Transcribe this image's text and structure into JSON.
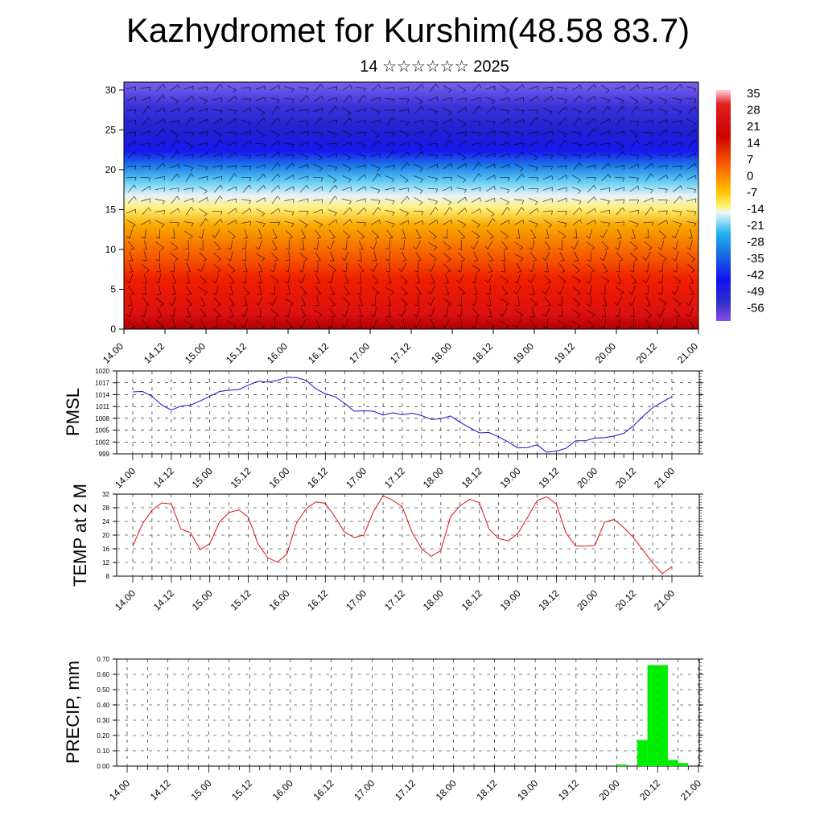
{
  "header": {
    "title": "Kazhydromet for Kurshim(48.58 83.7)",
    "subtitle": "14 ☆☆☆☆☆☆ 2025"
  },
  "colors": {
    "pmsl_line": "#1010d0",
    "temp_line": "#e01010",
    "precip_bar": "#00ee00"
  },
  "chart_data": [
    {
      "type": "heatmap",
      "name_hint": "upper-air-cross-section",
      "x_ticks": [
        "14.00",
        "14.12",
        "15.00",
        "15.12",
        "16.00",
        "16.12",
        "17.00",
        "17.12",
        "18.00",
        "18.12",
        "19.00",
        "19.12",
        "20.00",
        "20.12",
        "21.00"
      ],
      "y_ticks": [
        "0",
        "5",
        "10",
        "15",
        "20",
        "25",
        "30"
      ],
      "ylim": [
        0,
        31
      ],
      "colorbar_labels": [
        "35",
        "28",
        "21",
        "14",
        "7",
        "0",
        "-7",
        "-14",
        "-21",
        "-28",
        "-35",
        "-42",
        "-49",
        "-56"
      ]
    },
    {
      "type": "line",
      "ylabel": "PMSL",
      "x_ticks": [
        "14.00",
        "14.12",
        "15.00",
        "15.12",
        "16.00",
        "16.12",
        "17.00",
        "17.12",
        "18.00",
        "18.12",
        "19.00",
        "19.12",
        "20.00",
        "20.12",
        "21.00"
      ],
      "y_ticks": [
        "1020",
        "1017",
        "1014",
        "1011",
        "1008",
        "1005",
        "1002",
        "999"
      ],
      "ylim": [
        999,
        1020
      ],
      "values": [
        1014.7,
        1014.8,
        1013.6,
        1011.4,
        1010.1,
        1011.1,
        1011.4,
        1012.4,
        1013.6,
        1014.8,
        1015.1,
        1015.3,
        1016.4,
        1017.4,
        1017.2,
        1017.6,
        1018.4,
        1018.3,
        1017.6,
        1015.5,
        1014.2,
        1013.5,
        1011.8,
        1009.8,
        1009.9,
        1009.8,
        1008.8,
        1009.4,
        1008.9,
        1009.3,
        1008.7,
        1007.7,
        1007.9,
        1008.6,
        1007.0,
        1005.6,
        1004.3,
        1004.4,
        1003.3,
        1002.0,
        1000.5,
        1000.6,
        1001.3,
        999.4,
        999.7,
        1000.4,
        1002.3,
        1002.3,
        1003.0,
        1003.1,
        1003.5,
        1004.2,
        1006.1,
        1008.5,
        1010.7,
        1012.1,
        1013.5
      ]
    },
    {
      "type": "line",
      "ylabel": "TEMP at 2 M",
      "x_ticks": [
        "14.00",
        "14.12",
        "15.00",
        "15.12",
        "16.00",
        "16.12",
        "17.00",
        "17.12",
        "18.00",
        "18.12",
        "19.00",
        "19.12",
        "20.00",
        "20.12",
        "21.00"
      ],
      "y_ticks": [
        "32",
        "28",
        "24",
        "20",
        "16",
        "12",
        "8"
      ],
      "ylim": [
        8,
        32
      ],
      "values": [
        16.8,
        23.3,
        27.3,
        29.4,
        29.1,
        21.8,
        20.7,
        15.8,
        17.5,
        23.8,
        26.6,
        27.4,
        25.3,
        17.5,
        13.4,
        12.1,
        14.4,
        23.5,
        27.7,
        29.7,
        29.3,
        25.3,
        20.9,
        19.3,
        20.0,
        26.9,
        31.5,
        30.2,
        28.2,
        20.9,
        16.0,
        13.8,
        15.5,
        25.4,
        28.6,
        30.5,
        29.5,
        21.8,
        19.0,
        18.3,
        20.5,
        25.1,
        30.1,
        31.2,
        29.1,
        20.6,
        16.8,
        16.8,
        17.0,
        23.8,
        24.6,
        22.2,
        19.3,
        15.6,
        11.9,
        8.7,
        10.8
      ]
    },
    {
      "type": "bar",
      "ylabel": "PRECIP, mm",
      "x_ticks": [
        "14.00",
        "14.12",
        "15.00",
        "15.12",
        "16.00",
        "16.12",
        "17.00",
        "17.12",
        "18.00",
        "18.12",
        "19.00",
        "19.12",
        "20.00",
        "20.12",
        "21.00"
      ],
      "y_ticks": [
        "0.70",
        "0.60",
        "0.50",
        "0.40",
        "0.30",
        "0.20",
        "0.10",
        "0.00"
      ],
      "ylim": [
        0,
        0.7
      ],
      "values": [
        0,
        0,
        0,
        0,
        0,
        0,
        0,
        0,
        0,
        0,
        0,
        0,
        0,
        0,
        0,
        0,
        0,
        0,
        0,
        0,
        0,
        0,
        0,
        0,
        0,
        0,
        0,
        0,
        0,
        0,
        0,
        0,
        0,
        0,
        0,
        0,
        0,
        0,
        0,
        0,
        0,
        0,
        0,
        0,
        0,
        0,
        0,
        0,
        0.01,
        0,
        0.17,
        0.66,
        0.66,
        0.04,
        0.02,
        0,
        0
      ]
    }
  ]
}
